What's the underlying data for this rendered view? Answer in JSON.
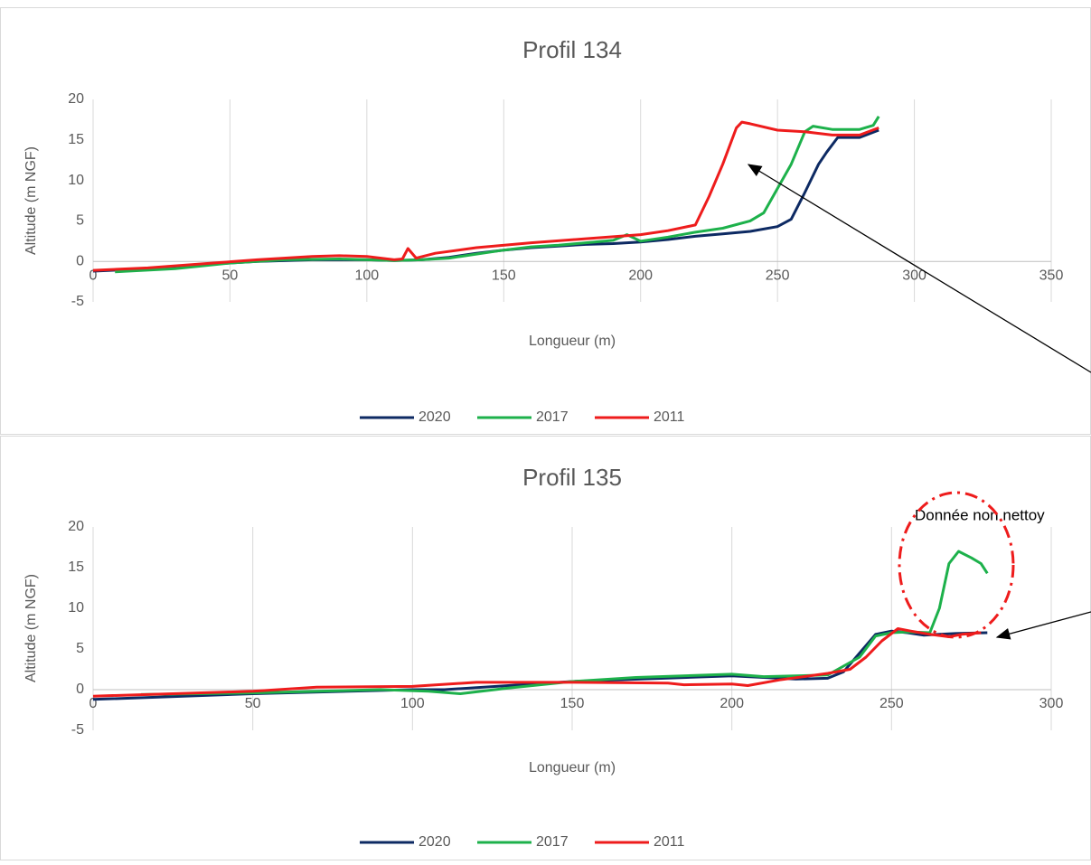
{
  "chart_data": [
    {
      "type": "line",
      "title": "Profil 134",
      "xlabel": "Longueur (m)",
      "ylabel": "Altitude (m NGF)",
      "xlim": [
        0,
        350
      ],
      "xticks": [
        0,
        50,
        100,
        150,
        200,
        250,
        300,
        350
      ],
      "ylim": [
        -5,
        20
      ],
      "yticks": [
        -5,
        0,
        5,
        10,
        15,
        20
      ],
      "grid": "x",
      "legend": "bottom",
      "series": [
        {
          "name": "2020",
          "color": "#0d2a63",
          "x": [
            0,
            20,
            40,
            60,
            80,
            100,
            110,
            120,
            130,
            140,
            150,
            160,
            170,
            180,
            190,
            200,
            210,
            220,
            230,
            240,
            250,
            255,
            260,
            265,
            268,
            272,
            280,
            287
          ],
          "values": [
            -1.2,
            -0.9,
            -0.4,
            0,
            0.2,
            0.2,
            0.1,
            0.2,
            0.5,
            1,
            1.4,
            1.7,
            1.9,
            2.1,
            2.2,
            2.4,
            2.7,
            3.1,
            3.4,
            3.7,
            4.3,
            5.2,
            8.5,
            12,
            13.5,
            15.3,
            15.3,
            16.2
          ]
        },
        {
          "name": "2017",
          "color": "#1db14b",
          "x": [
            8,
            30,
            50,
            70,
            90,
            110,
            120,
            130,
            140,
            150,
            160,
            170,
            180,
            190,
            195,
            200,
            210,
            220,
            230,
            240,
            245,
            250,
            255,
            260,
            263,
            270,
            280,
            285,
            287
          ],
          "values": [
            -1.3,
            -0.9,
            -0.2,
            0.2,
            0.3,
            0.1,
            0.2,
            0.4,
            0.9,
            1.4,
            1.8,
            2,
            2.3,
            2.6,
            3.3,
            2.5,
            3,
            3.6,
            4.1,
            5,
            6,
            9,
            12,
            16,
            16.7,
            16.3,
            16.3,
            16.8,
            17.9
          ]
        },
        {
          "name": "2011",
          "color": "#ee1c1c",
          "x": [
            0,
            20,
            40,
            60,
            80,
            90,
            100,
            110,
            113,
            115,
            118,
            125,
            140,
            160,
            180,
            200,
            210,
            220,
            225,
            230,
            235,
            237,
            240,
            250,
            260,
            270,
            280,
            287
          ],
          "values": [
            -1.1,
            -0.8,
            -0.3,
            0.2,
            0.6,
            0.7,
            0.6,
            0.2,
            0.3,
            1.6,
            0.4,
            1,
            1.7,
            2.3,
            2.8,
            3.3,
            3.8,
            4.5,
            8,
            12,
            16.5,
            17.2,
            17,
            16.2,
            16,
            15.6,
            15.6,
            16.5
          ]
        }
      ]
    },
    {
      "type": "line",
      "title": "Profil 135",
      "xlabel": "Longueur (m)",
      "ylabel": "Altitude (m NGF)",
      "annotation": "Donnée non nettoy",
      "xlim": [
        0,
        300
      ],
      "xticks": [
        0,
        50,
        100,
        150,
        200,
        250,
        300
      ],
      "ylim": [
        -5,
        20
      ],
      "yticks": [
        -5,
        0,
        5,
        10,
        15,
        20
      ],
      "grid": "x",
      "legend": "bottom",
      "series": [
        {
          "name": "2020",
          "color": "#0d2a63",
          "x": [
            0,
            50,
            100,
            110,
            150,
            200,
            210,
            220,
            230,
            235,
            240,
            245,
            250,
            255,
            260,
            265,
            270,
            280
          ],
          "values": [
            -1.2,
            -0.5,
            0,
            0,
            1,
            1.7,
            1.5,
            1.3,
            1.4,
            2.2,
            4.5,
            6.8,
            7.2,
            7,
            6.7,
            6.8,
            6.9,
            7
          ]
        },
        {
          "name": "2017",
          "color": "#1db14b",
          "x": [
            15,
            50,
            90,
            105,
            115,
            130,
            150,
            170,
            200,
            210,
            230,
            240,
            245,
            250,
            255,
            262,
            265,
            268,
            271,
            275,
            278,
            280
          ],
          "values": [
            -0.6,
            -0.4,
            0,
            -0.2,
            -0.5,
            0.2,
            1,
            1.5,
            1.9,
            1.6,
            1.8,
            4,
            6.6,
            7,
            7.1,
            7,
            10,
            15.5,
            17,
            16.2,
            15.5,
            14.3
          ]
        },
        {
          "name": "2011",
          "color": "#ee1c1c",
          "x": [
            0,
            50,
            70,
            100,
            120,
            150,
            180,
            185,
            200,
            205,
            215,
            230,
            237,
            242,
            247,
            252,
            256,
            262,
            268,
            272,
            278
          ],
          "values": [
            -0.8,
            -0.2,
            0.3,
            0.4,
            0.9,
            0.9,
            0.8,
            0.6,
            0.7,
            0.5,
            1.2,
            2,
            2.5,
            4,
            6,
            7.5,
            7.2,
            6.8,
            6.5,
            6.8,
            7
          ]
        }
      ]
    }
  ]
}
